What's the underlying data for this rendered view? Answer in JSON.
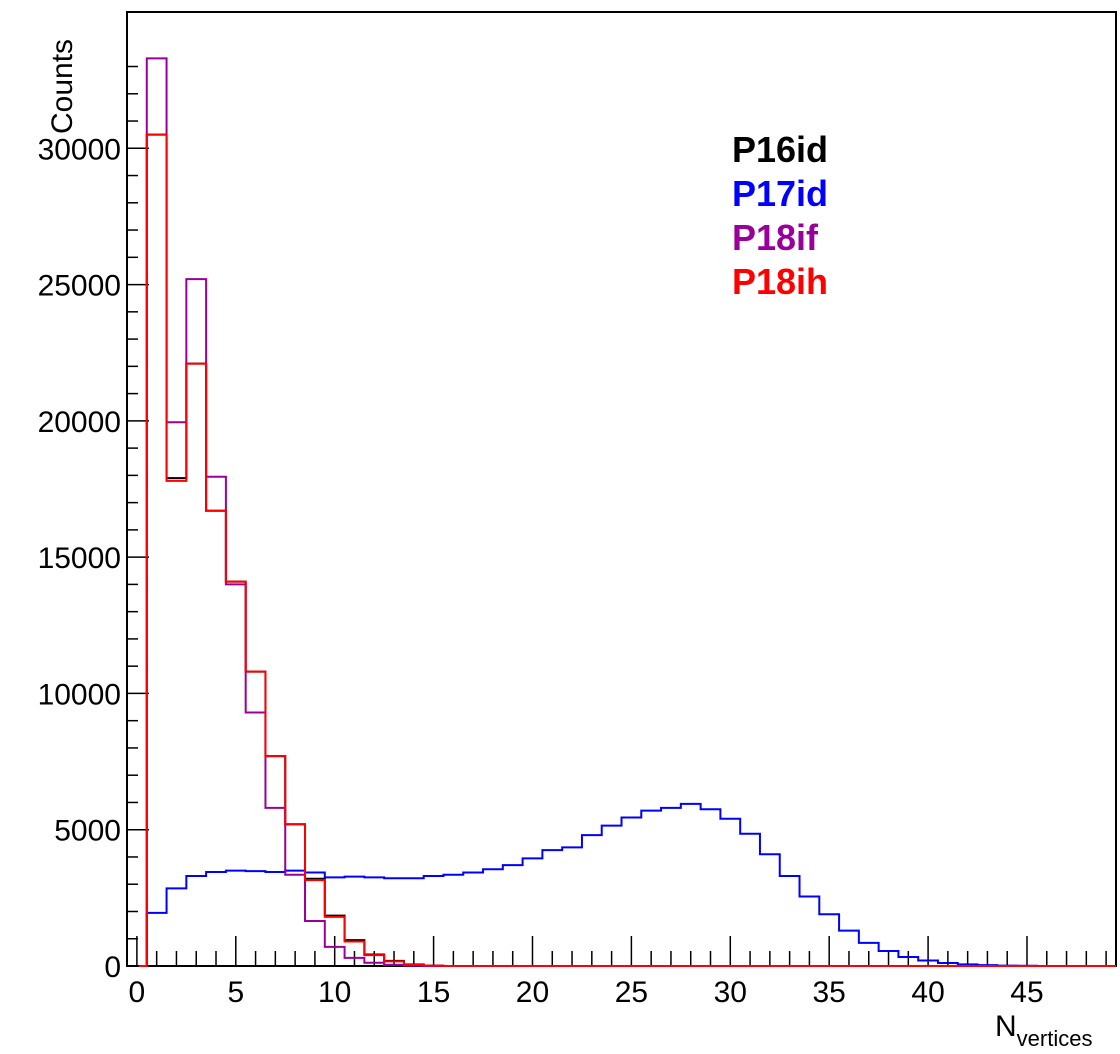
{
  "chart_data": {
    "type": "step-histogram",
    "xlabel_main": "N",
    "xlabel_sub": "vertices",
    "ylabel": "Counts",
    "xlim": [
      -0.5,
      49.5
    ],
    "ylim": [
      0,
      35000
    ],
    "x_ticks": [
      "0",
      "5",
      "10",
      "15",
      "20",
      "25",
      "30",
      "35",
      "40",
      "45"
    ],
    "y_ticks": [
      "0",
      "5000",
      "10000",
      "15000",
      "20000",
      "25000",
      "30000"
    ],
    "legend_position": "top-right",
    "bin_start": 0.5,
    "bin_width": 1,
    "series": [
      {
        "name": "P16id",
        "color": "#000000",
        "values": [
          30500,
          17900,
          22100,
          16700,
          14100,
          10800,
          7700,
          5200,
          3200,
          1850,
          950,
          420,
          190,
          60,
          15
        ]
      },
      {
        "name": "P17id",
        "color": "#0000ff",
        "values": [
          1950,
          2850,
          3300,
          3450,
          3500,
          3480,
          3450,
          3500,
          3430,
          3250,
          3280,
          3250,
          3220,
          3220,
          3300,
          3350,
          3430,
          3550,
          3700,
          3950,
          4250,
          4350,
          4800,
          5150,
          5450,
          5700,
          5800,
          5950,
          5750,
          5400,
          4850,
          4100,
          3300,
          2550,
          1900,
          1300,
          850,
          550,
          330,
          200,
          110,
          60,
          30,
          15,
          8
        ]
      },
      {
        "name": "P18if",
        "color": "#990099",
        "values": [
          33300,
          19950,
          25200,
          17950,
          14000,
          9300,
          5800,
          3350,
          1650,
          700,
          300,
          120,
          40,
          15
        ]
      },
      {
        "name": "P18ih",
        "color": "#ff0000",
        "values": [
          30500,
          17800,
          22100,
          16700,
          14100,
          10800,
          7700,
          5200,
          3150,
          1800,
          900,
          400,
          170,
          50,
          12
        ]
      }
    ]
  }
}
